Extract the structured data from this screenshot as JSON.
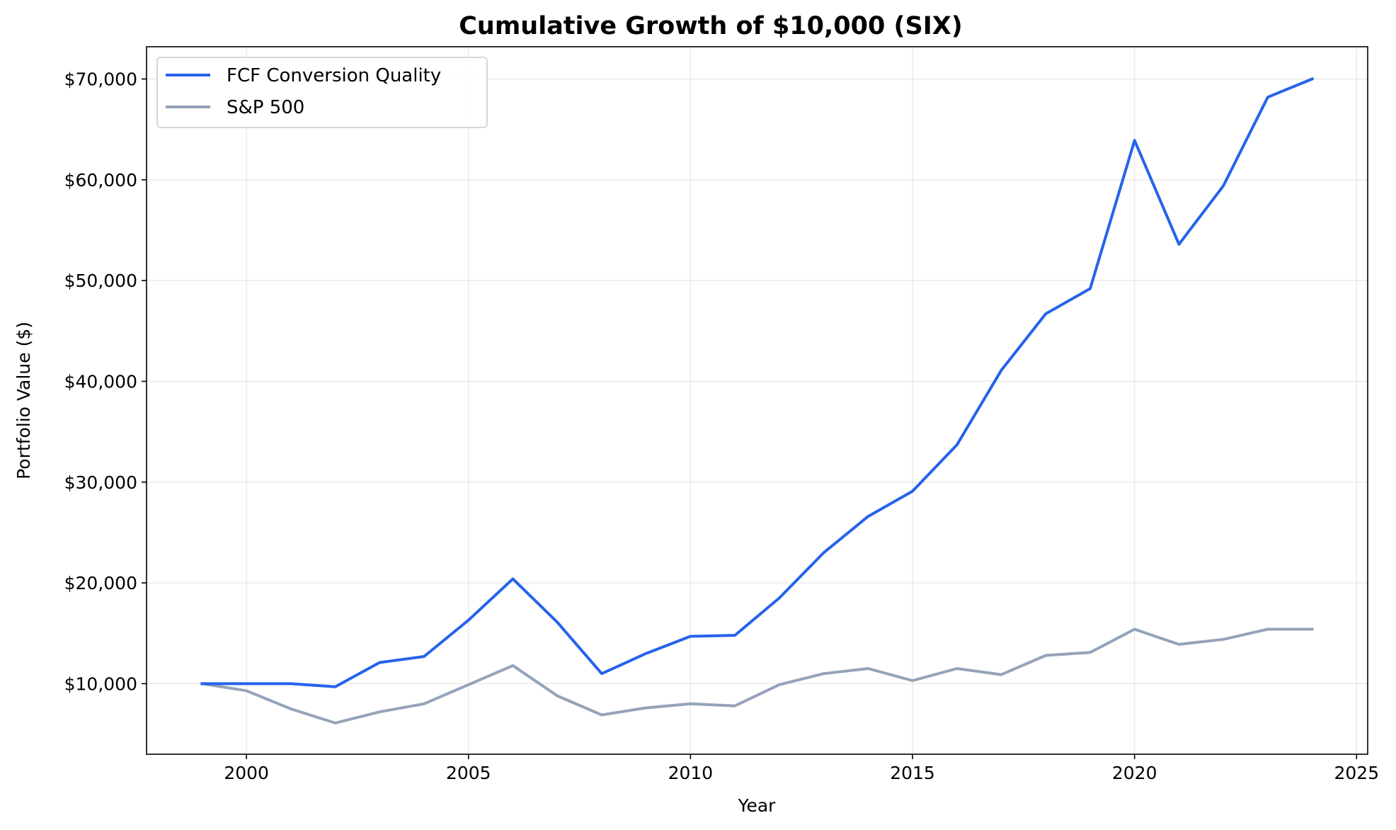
{
  "chart_data": {
    "type": "line",
    "title": "Cumulative Growth of $10,000 (SIX)",
    "xlabel": "Year",
    "ylabel": "Portfolio Value ($)",
    "xlim": [
      1997.75,
      2025.25
    ],
    "ylim": [
      3000,
      73200
    ],
    "x_ticks": [
      2000,
      2005,
      2010,
      2015,
      2020,
      2025
    ],
    "x_tick_labels": [
      "2000",
      "2005",
      "2010",
      "2015",
      "2020",
      "2025"
    ],
    "y_ticks": [
      10000,
      20000,
      30000,
      40000,
      50000,
      60000,
      70000
    ],
    "y_tick_labels": [
      "$10,000",
      "$20,000",
      "$30,000",
      "$40,000",
      "$50,000",
      "$60,000",
      "$70,000"
    ],
    "grid": true,
    "legend_position": "top-left",
    "x": [
      1999,
      2000,
      2001,
      2002,
      2003,
      2004,
      2005,
      2006,
      2007,
      2008,
      2009,
      2010,
      2011,
      2012,
      2013,
      2014,
      2015,
      2016,
      2017,
      2018,
      2019,
      2020,
      2021,
      2022,
      2023,
      2024
    ],
    "series": [
      {
        "name": "FCF Conversion Quality",
        "color": "#2563eb",
        "values": [
          10000,
          10000,
          10000,
          9700,
          12100,
          12700,
          16300,
          20400,
          16100,
          11000,
          13000,
          14700,
          14800,
          18500,
          23000,
          26600,
          29100,
          33700,
          41100,
          46700,
          49200,
          63900,
          53600,
          59400,
          68200,
          70000
        ]
      },
      {
        "name": "S&P 500",
        "color": "#94a3b8",
        "values": [
          10000,
          9300,
          7500,
          6100,
          7200,
          8000,
          9900,
          11800,
          8800,
          6900,
          7600,
          8000,
          7800,
          9900,
          11000,
          11500,
          10300,
          11500,
          10900,
          12800,
          13100,
          15400,
          13900,
          14400,
          15400,
          15400
        ]
      }
    ]
  }
}
